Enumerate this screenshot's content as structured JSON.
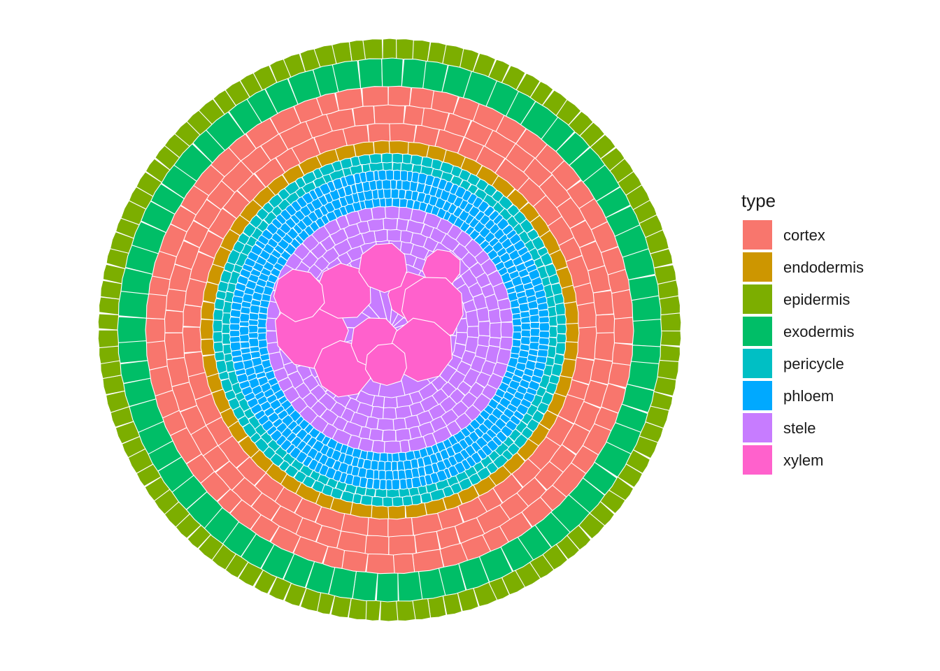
{
  "legend": {
    "title": "type",
    "items": [
      {
        "key": "cortex",
        "label": "cortex",
        "color": "#F8766D"
      },
      {
        "key": "endodermis",
        "label": "endodermis",
        "color": "#CD9600"
      },
      {
        "key": "epidermis",
        "label": "epidermis",
        "color": "#7CAE00"
      },
      {
        "key": "exodermis",
        "label": "exodermis",
        "color": "#00BE67"
      },
      {
        "key": "pericycle",
        "label": "pericycle",
        "color": "#00BFC4"
      },
      {
        "key": "phloem",
        "label": "phloem",
        "color": "#00A9FF"
      },
      {
        "key": "stele",
        "label": "stele",
        "color": "#C77CFF"
      },
      {
        "key": "xylem",
        "label": "xylem",
        "color": "#FF61CC"
      }
    ]
  }
}
